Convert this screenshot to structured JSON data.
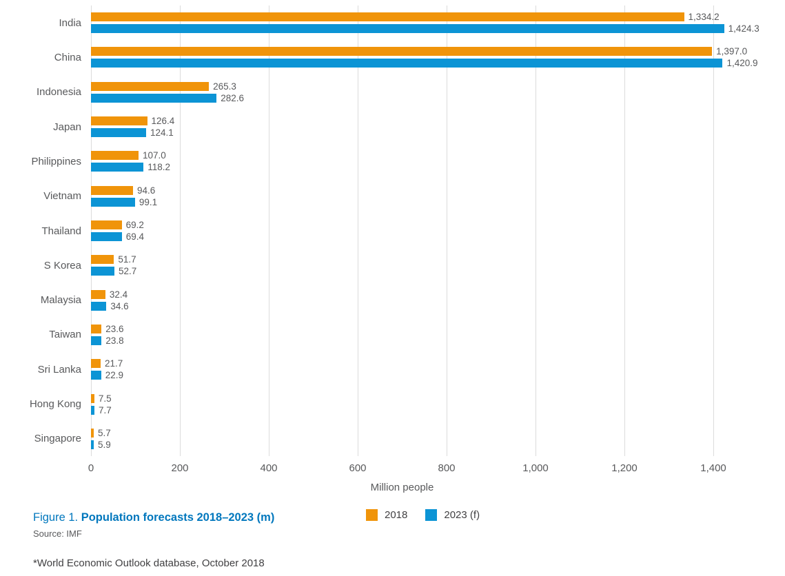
{
  "chart_data": {
    "type": "bar",
    "orientation": "horizontal",
    "title": "Population forecasts 2018–2023 (m)",
    "xlabel": "Million people",
    "xlim": [
      0,
      1450
    ],
    "xticks": [
      0,
      200,
      400,
      600,
      800,
      1000,
      1200,
      1400
    ],
    "xtick_labels": [
      "0",
      "200",
      "400",
      "600",
      "800",
      "1,000",
      "1,200",
      "1,400"
    ],
    "grid": "vertical-only",
    "legend_position": "bottom-center",
    "categories": [
      "India",
      "China",
      "Indonesia",
      "Japan",
      "Philippines",
      "Vietnam",
      "Thailand",
      "S Korea",
      "Malaysia",
      "Taiwan",
      "Sri Lanka",
      "Hong Kong",
      "Singapore"
    ],
    "series": [
      {
        "name": "2018",
        "color": "#f0940a",
        "values": [
          1334.2,
          1397.0,
          265.3,
          126.4,
          107.0,
          94.6,
          69.2,
          51.7,
          32.4,
          23.6,
          21.7,
          7.5,
          5.7
        ]
      },
      {
        "name": "2023 (f)",
        "color": "#0c94d5",
        "values": [
          1424.3,
          1420.9,
          282.6,
          124.1,
          118.2,
          99.1,
          69.4,
          52.7,
          34.6,
          23.8,
          22.9,
          7.7,
          5.9
        ]
      }
    ],
    "value_label_format": "thousands-comma-one-decimal"
  },
  "caption": {
    "figure_label": "Figure 1.",
    "title": "Population forecasts 2018–2023 (m)",
    "source": "Source: IMF"
  },
  "footnote": "*World Economic Outlook database, October 2018",
  "colors": {
    "bar_2018": "#f0940a",
    "bar_2023": "#0c94d5",
    "gridline": "#dbdbdb",
    "axis_text": "#58595b",
    "caption_blue": "#0077bd",
    "footnote_text": "#414042"
  }
}
